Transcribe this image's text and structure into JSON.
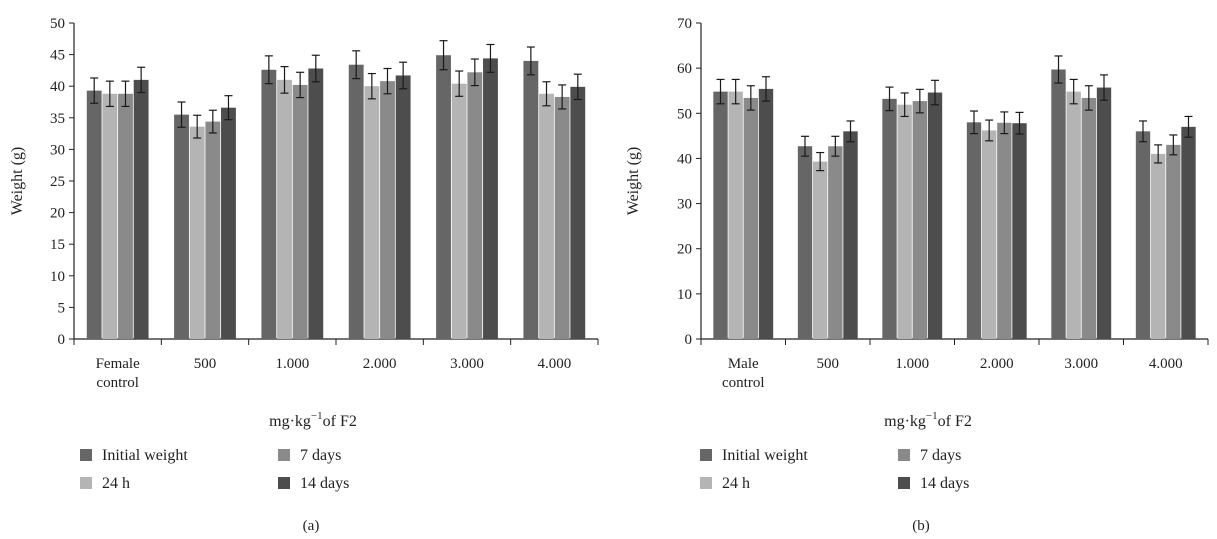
{
  "colors": {
    "series": [
      "#666666",
      "#b4b4b4",
      "#8a8a8a",
      "#4d4d4d"
    ],
    "errorbar": "#1a1a1a",
    "axis": "#222222"
  },
  "chart_data": [
    {
      "type": "bar",
      "panel_label": "(a)",
      "xlabel_prefix": "mg·kg",
      "xlabel_sup": "−1",
      "xlabel_suffix": "of F2",
      "ylabel": "Weight (g)",
      "ylim": [
        0,
        50
      ],
      "yticks": [
        0,
        5,
        10,
        15,
        20,
        25,
        30,
        35,
        40,
        45,
        50
      ],
      "categories": [
        [
          "Female",
          "control"
        ],
        [
          "500"
        ],
        [
          "1.000"
        ],
        [
          "2.000"
        ],
        [
          "3.000"
        ],
        [
          "4.000"
        ]
      ],
      "series": [
        {
          "name": "Initial weight",
          "values": [
            39.3,
            35.5,
            42.6,
            43.4,
            44.9,
            44.0
          ],
          "errors": [
            2.0,
            2.0,
            2.2,
            2.2,
            2.3,
            2.2
          ]
        },
        {
          "name": "24 h",
          "values": [
            38.8,
            33.6,
            41.0,
            40.0,
            40.4,
            38.8
          ],
          "errors": [
            2.0,
            1.8,
            2.1,
            2.0,
            2.0,
            1.9
          ]
        },
        {
          "name": "7 days",
          "values": [
            38.8,
            34.4,
            40.2,
            40.8,
            42.2,
            38.3
          ],
          "errors": [
            2.0,
            1.8,
            2.0,
            2.0,
            2.1,
            1.9
          ]
        },
        {
          "name": "14 days",
          "values": [
            41.0,
            36.6,
            42.8,
            41.7,
            44.4,
            39.9
          ],
          "errors": [
            2.0,
            1.9,
            2.1,
            2.1,
            2.2,
            2.0
          ]
        }
      ],
      "legend": "bottom, two columns",
      "grid": false
    },
    {
      "type": "bar",
      "panel_label": "(b)",
      "xlabel_prefix": "mg·kg",
      "xlabel_sup": "−1",
      "xlabel_suffix": "of F2",
      "ylabel": "Weight (g)",
      "ylim": [
        0,
        70
      ],
      "yticks": [
        0,
        10,
        20,
        30,
        40,
        50,
        60,
        70
      ],
      "categories": [
        [
          "Male",
          "control"
        ],
        [
          "500"
        ],
        [
          "1.000"
        ],
        [
          "2.000"
        ],
        [
          "3.000"
        ],
        [
          "4.000"
        ]
      ],
      "series": [
        {
          "name": "Initial weight",
          "values": [
            54.8,
            42.7,
            53.2,
            48.0,
            59.7,
            46.0
          ],
          "errors": [
            2.7,
            2.2,
            2.6,
            2.5,
            3.0,
            2.3
          ]
        },
        {
          "name": "24 h",
          "values": [
            54.8,
            39.3,
            51.9,
            46.2,
            54.8,
            41.0
          ],
          "errors": [
            2.7,
            2.0,
            2.6,
            2.3,
            2.7,
            2.0
          ]
        },
        {
          "name": "7 days",
          "values": [
            53.4,
            42.7,
            52.7,
            47.9,
            53.4,
            43.0
          ],
          "errors": [
            2.7,
            2.2,
            2.6,
            2.4,
            2.7,
            2.2
          ]
        },
        {
          "name": "14 days",
          "values": [
            55.4,
            46.0,
            54.6,
            47.8,
            55.7,
            47.0
          ],
          "errors": [
            2.7,
            2.3,
            2.7,
            2.4,
            2.8,
            2.3
          ]
        }
      ],
      "legend": "bottom, two columns",
      "grid": false
    }
  ]
}
